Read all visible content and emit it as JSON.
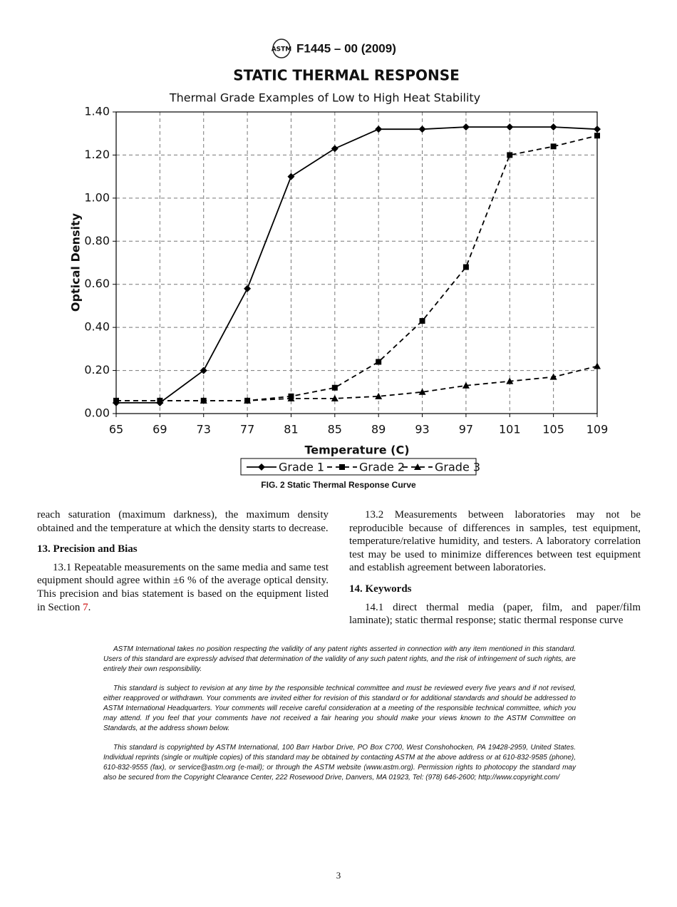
{
  "header": {
    "designation": "F1445 – 00 (2009)"
  },
  "chart_data": {
    "type": "line",
    "title": "STATIC THERMAL RESPONSE",
    "subtitle": "Thermal Grade Examples of Low to High Heat Stability",
    "x_label": "Temperature (C)",
    "y_label": "Optical Density",
    "x": [
      65,
      69,
      73,
      77,
      81,
      85,
      89,
      93,
      97,
      101,
      105,
      109
    ],
    "xlim": [
      65,
      109
    ],
    "xticks": [
      65,
      69,
      73,
      77,
      81,
      85,
      89,
      93,
      97,
      101,
      105,
      109
    ],
    "ylim": [
      0,
      1.4
    ],
    "yticks": [
      {
        "value": 0,
        "label": "0.00"
      },
      {
        "value": 0.2,
        "label": "0.20"
      },
      {
        "value": 0.4,
        "label": "0.40"
      },
      {
        "value": 0.6,
        "label": "0.60"
      },
      {
        "value": 0.8,
        "label": "0.80"
      },
      {
        "value": 1.0,
        "label": "1.00"
      },
      {
        "value": 1.2,
        "label": "1.20"
      },
      {
        "value": 1.4,
        "label": "1.40"
      }
    ],
    "grid": true,
    "legend": "bottom",
    "series": [
      {
        "name": "Grade 1",
        "color": "#000000",
        "marker": "diamond",
        "dash": "solid",
        "values": [
          0.05,
          0.05,
          0.2,
          0.58,
          1.1,
          1.23,
          1.32,
          1.32,
          1.33,
          1.33,
          1.33,
          1.32
        ]
      },
      {
        "name": "Grade 2",
        "color": "#000000",
        "marker": "square",
        "dash": "dashed",
        "values": [
          0.06,
          0.06,
          0.06,
          0.06,
          0.08,
          0.12,
          0.24,
          0.43,
          0.68,
          1.2,
          1.24,
          1.29
        ]
      },
      {
        "name": "Grade 3",
        "color": "#000000",
        "marker": "triangle",
        "dash": "dashed",
        "values": [
          0.06,
          0.06,
          0.06,
          0.06,
          0.07,
          0.07,
          0.08,
          0.1,
          0.13,
          0.15,
          0.17,
          0.22
        ]
      }
    ]
  },
  "figure": {
    "caption": "FIG. 2 Static Thermal Response Curve"
  },
  "left_column": {
    "p0": "reach saturation (maximum darkness), the maximum density obtained and the temperature at which the density starts to decrease.",
    "heading": "13. Precision and Bias",
    "p1": {
      "text": "13.1 Repeatable measurements on the same media and same test equipment should agree within ±6 % of the average optical density. This precision and bias statement is based on the equipment listed in Section ",
      "link": "7",
      "end": "."
    }
  },
  "right_column": {
    "p0": "13.2 Measurements between laboratories may not be reproducible because of differences in samples, test equipment, temperature/relative humidity, and testers. A laboratory correlation test may be used to minimize differences between test equipment and establish agreement between laboratories.",
    "heading": "14. Keywords",
    "p1": "14.1 direct thermal media (paper, film, and paper/film laminate); static thermal response; static thermal response curve"
  },
  "notices": [
    "ASTM International takes no position respecting the validity of any patent rights asserted in connection with any item mentioned in this standard. Users of this standard are expressly advised that determination of the validity of any such patent rights, and the risk of infringement of such rights, are entirely their own responsibility.",
    "This standard is subject to revision at any time by the responsible technical committee and must be reviewed every five years and if not revised, either reapproved or withdrawn. Your comments are invited either for revision of this standard or for additional standards and should be addressed to ASTM International Headquarters. Your comments will receive careful consideration at a meeting of the responsible technical committee, which you may attend. If you feel that your comments have not received a fair hearing you should make your views known to the ASTM Committee on Standards, at the address shown below.",
    "This standard is copyrighted by ASTM International, 100 Barr Harbor Drive, PO Box C700, West Conshohocken, PA 19428-2959, United States. Individual reprints (single or multiple copies) of this standard may be obtained by contacting ASTM at the above address or at 610-832-9585 (phone), 610-832-9555 (fax), or service@astm.org (e-mail); or through the ASTM website (www.astm.org). Permission rights to photocopy the standard may also be secured from the Copyright Clearance Center, 222 Rosewood Drive, Danvers, MA 01923, Tel: (978) 646-2600; http://www.copyright.com/"
  ],
  "page_number": "3"
}
